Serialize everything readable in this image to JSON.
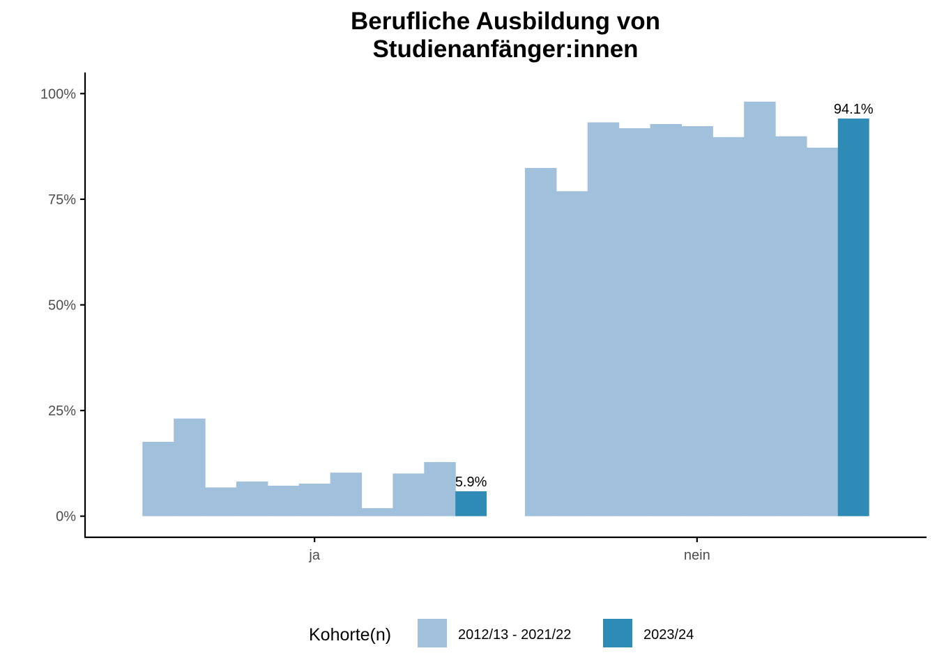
{
  "chart_data": {
    "type": "bar",
    "title_lines": [
      "Berufliche Ausbildung von",
      "Studienanfänger:innen"
    ],
    "xlabel": "",
    "ylabel": "",
    "ylim": [
      -0.05,
      1.05
    ],
    "y_ticks": [
      0,
      0.25,
      0.5,
      0.75,
      1.0
    ],
    "y_tick_labels": [
      "0%",
      "25%",
      "50%",
      "75%",
      "100%"
    ],
    "categories": [
      "ja",
      "nein"
    ],
    "historical_cohorts": [
      {
        "category": "ja",
        "values": [
          0.176,
          0.231,
          0.068,
          0.082,
          0.072,
          0.077,
          0.103,
          0.019,
          0.101,
          0.128
        ]
      },
      {
        "category": "nein",
        "values": [
          0.824,
          0.769,
          0.932,
          0.918,
          0.928,
          0.923,
          0.897,
          0.981,
          0.899,
          0.872
        ]
      }
    ],
    "current_cohort": [
      {
        "category": "ja",
        "value": 0.059,
        "label": "5.9%"
      },
      {
        "category": "nein",
        "value": 0.941,
        "label": "94.1%"
      }
    ],
    "legend": {
      "title": "Kohorte(n)",
      "position": "bottom",
      "entries": [
        {
          "label": "2012/13 - 2021/22",
          "color": "#a0c0dc"
        },
        {
          "label": "2023/24",
          "color": "#2e8bb6"
        }
      ]
    },
    "colors": {
      "historical": "#a0c0dc",
      "current": "#2e8bb6",
      "axis": "#000000",
      "tick_text": "#4d4d4d"
    }
  }
}
